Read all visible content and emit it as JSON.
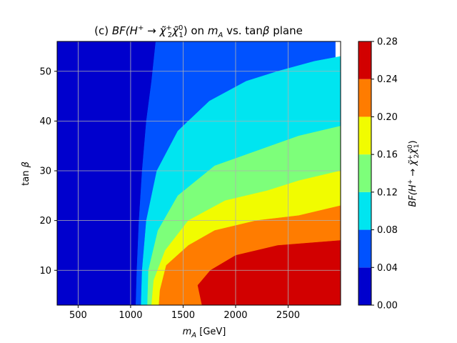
{
  "chart_data": {
    "type": "heatmap",
    "subtype": "filled-contour",
    "title": "(c) BF(H⁺→χ̃₂⁺χ̃₁⁰) on m_A vs. tanβ plane",
    "title_display": {
      "prefix": "(c) ",
      "bf": "BF(H",
      "sup": "+",
      "arrow": " → ",
      "chi": "χ̃",
      "chi1_sup": "+",
      "chi1_sub": "2",
      "chi2_sup": "0",
      "chi2_sub": "1",
      "tail_open": ") on ",
      "ma": "m",
      "ma_sub": "A",
      "tail_mid": " vs. tan",
      "beta": "β",
      "tail_end": " plane"
    },
    "xlabel": "m_A [GeV]",
    "xlabel_display": {
      "m": "m",
      "sub": "A",
      "unit": " [GeV]"
    },
    "ylabel": "tan β",
    "ylabel_display": {
      "tan": "tan",
      "beta": "β"
    },
    "xlim": [
      300,
      3000
    ],
    "ylim": [
      3,
      56
    ],
    "xticks": [
      500,
      1000,
      1500,
      2000,
      2500
    ],
    "yticks": [
      10,
      20,
      30,
      40,
      50
    ],
    "grid": true,
    "colorbar": {
      "label": "BF(H⁺→χ̃₂⁺χ̃₁⁰)",
      "label_display": {
        "bf": "BF(H",
        "sup": "+",
        "arrow": " → ",
        "chi": "χ̃",
        "chi1_sup": "+",
        "chi1_sub": "2",
        "chi2_sup": "0",
        "chi2_sub": "1",
        "close": ")"
      },
      "levels": [
        0.0,
        0.04,
        0.08,
        0.12,
        0.16,
        0.2,
        0.24,
        0.28
      ],
      "tick_labels": [
        "0.00",
        "0.04",
        "0.08",
        "0.12",
        "0.16",
        "0.20",
        "0.24",
        "0.28"
      ],
      "colors": [
        "#0000cd",
        "#0052ff",
        "#00e5f0",
        "#7dff7a",
        "#f1fc00",
        "#ff7c00",
        "#d20000"
      ]
    },
    "regions": [
      {
        "level": "0.00-0.04",
        "boundary": [
          [
            300,
            3
          ],
          [
            300,
            56
          ],
          [
            1240,
            56
          ],
          [
            1200,
            48
          ],
          [
            1150,
            40
          ],
          [
            1110,
            30
          ],
          [
            1080,
            20
          ],
          [
            1060,
            10
          ],
          [
            1050,
            3
          ]
        ]
      },
      {
        "level": "0.04-0.08",
        "boundary": [
          [
            1050,
            3
          ],
          [
            1060,
            10
          ],
          [
            1080,
            20
          ],
          [
            1110,
            30
          ],
          [
            1150,
            40
          ],
          [
            1200,
            48
          ],
          [
            1240,
            56
          ],
          [
            2950,
            56
          ],
          [
            2950,
            3
          ]
        ]
      },
      {
        "level": "0.08-0.12",
        "boundary": [
          [
            1100,
            3
          ],
          [
            1110,
            10
          ],
          [
            1150,
            20
          ],
          [
            1250,
            30
          ],
          [
            1450,
            38
          ],
          [
            1750,
            44
          ],
          [
            2100,
            48
          ],
          [
            2400,
            50
          ],
          [
            2750,
            52
          ],
          [
            3000,
            53
          ],
          [
            3000,
            3
          ]
        ]
      },
      {
        "level": "0.12-0.16",
        "boundary": [
          [
            1160,
            3
          ],
          [
            1170,
            10
          ],
          [
            1260,
            18
          ],
          [
            1450,
            25
          ],
          [
            1800,
            31
          ],
          [
            2200,
            34
          ],
          [
            2600,
            37
          ],
          [
            3000,
            39
          ],
          [
            3000,
            3
          ]
        ]
      },
      {
        "level": "0.16-0.20",
        "boundary": [
          [
            1200,
            3
          ],
          [
            1220,
            8
          ],
          [
            1330,
            14
          ],
          [
            1550,
            20
          ],
          [
            1900,
            24
          ],
          [
            2300,
            26
          ],
          [
            2600,
            28
          ],
          [
            3000,
            30
          ],
          [
            3000,
            3
          ]
        ]
      },
      {
        "level": "0.20-0.24",
        "boundary": [
          [
            1270,
            3
          ],
          [
            1280,
            6
          ],
          [
            1340,
            11
          ],
          [
            1550,
            15
          ],
          [
            1800,
            18
          ],
          [
            2200,
            20
          ],
          [
            2600,
            21
          ],
          [
            3000,
            23
          ],
          [
            3000,
            3
          ]
        ]
      },
      {
        "level": "0.24-0.28",
        "boundary": [
          [
            1680,
            3
          ],
          [
            1640,
            7
          ],
          [
            1760,
            10
          ],
          [
            2000,
            13
          ],
          [
            2400,
            15
          ],
          [
            3000,
            16
          ],
          [
            3000,
            3
          ]
        ]
      }
    ]
  }
}
